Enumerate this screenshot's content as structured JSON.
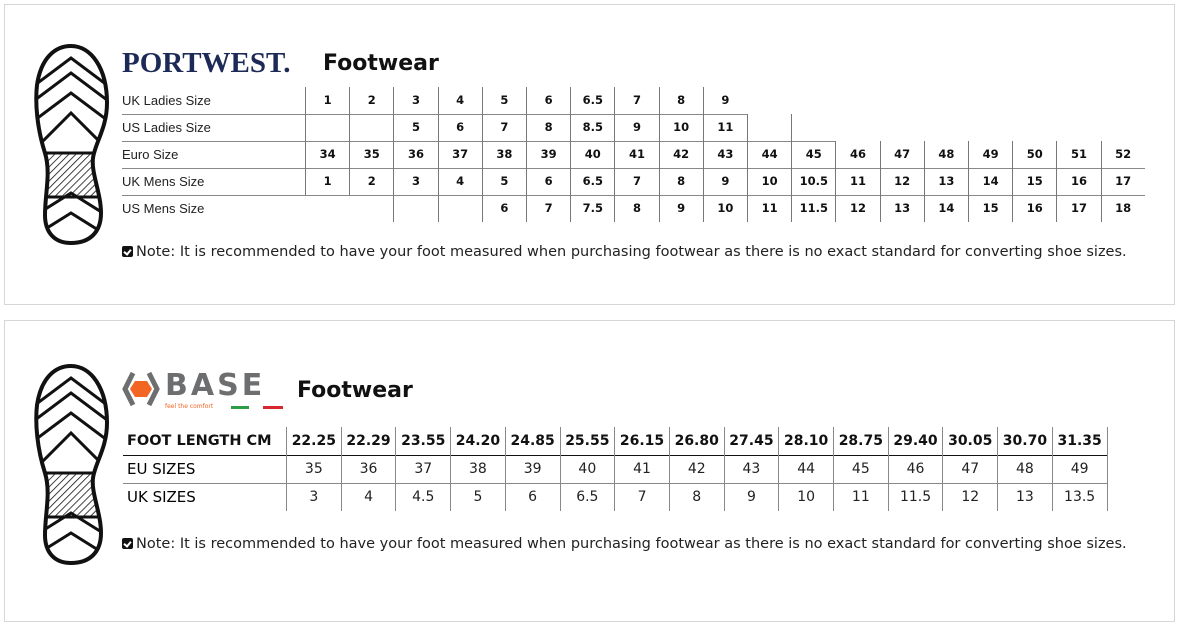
{
  "portwest": {
    "brand": "PORTWEST.",
    "title": "Footwear",
    "rows": [
      {
        "label": "UK Ladies Size",
        "cells": [
          "1",
          "2",
          "3",
          "4",
          "5",
          "6",
          "6.5",
          "7",
          "8",
          "9"
        ]
      },
      {
        "label": "US Ladies Size",
        "cells": [
          "",
          "",
          "5",
          "6",
          "7",
          "8",
          "8.5",
          "9",
          "10",
          "11",
          "",
          ""
        ]
      },
      {
        "label": "Euro Size",
        "cells": [
          "34",
          "35",
          "36",
          "37",
          "38",
          "39",
          "40",
          "41",
          "42",
          "43",
          "44",
          "45",
          "46",
          "47",
          "48",
          "49",
          "50",
          "51",
          "52"
        ]
      },
      {
        "label": "UK Mens Size",
        "cells": [
          "1",
          "2",
          "3",
          "4",
          "5",
          "6",
          "6.5",
          "7",
          "8",
          "9",
          "10",
          "10.5",
          "11",
          "12",
          "13",
          "14",
          "15",
          "16",
          "17"
        ]
      },
      {
        "label": "US Mens Size",
        "cells": [
          null,
          null,
          "",
          "",
          "6",
          "7",
          "7.5",
          "8",
          "9",
          "10",
          "11",
          "11.5",
          "12",
          "13",
          "14",
          "15",
          "16",
          "17",
          "18"
        ]
      }
    ],
    "note": "Note: It is recommended to have your foot measured when purchasing footwear as there is no exact standard for converting shoe sizes."
  },
  "base": {
    "brand": "BASE",
    "tagline": "feel the comfort",
    "title": "Footwear",
    "rows": [
      {
        "label": "FOOT LENGTH CM",
        "cells": [
          "22.25",
          "22.29",
          "23.55",
          "24.20",
          "24.85",
          "25.55",
          "26.15",
          "26.80",
          "27.45",
          "28.10",
          "28.75",
          "29.40",
          "30.05",
          "30.70",
          "31.35"
        ]
      },
      {
        "label": "EU SIZES",
        "cells": [
          "35",
          "36",
          "37",
          "38",
          "39",
          "40",
          "41",
          "42",
          "43",
          "44",
          "45",
          "46",
          "47",
          "48",
          "49"
        ]
      },
      {
        "label": "UK SIZES",
        "cells": [
          "3",
          "4",
          "4.5",
          "5",
          "6",
          "6.5",
          "7",
          "8",
          "9",
          "10",
          "11",
          "11.5",
          "12",
          "13",
          "13.5"
        ]
      }
    ],
    "note": "Note: It is recommended to have your foot measured when purchasing footwear as there is no exact standard for converting shoe sizes.",
    "colors": {
      "orange": "#f26522",
      "grey": "#6d6e70",
      "green": "#2e9b47",
      "red": "#d7282f"
    }
  },
  "colors": {
    "portwest_navy": "#1d2a57"
  }
}
